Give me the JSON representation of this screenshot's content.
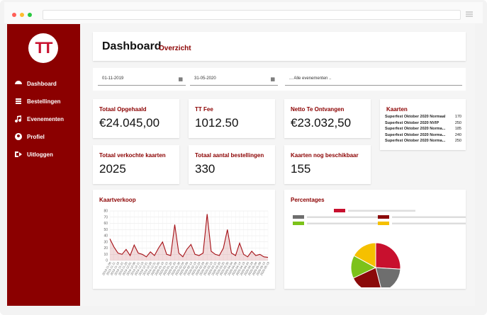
{
  "logo": "TT",
  "nav": [
    "Dashboard",
    "Bestellingen",
    "Evenementen",
    "Profiel",
    "Uitloggen"
  ],
  "header": {
    "title": "Dashboard",
    "subtitle": "Overzicht"
  },
  "filters": {
    "date_from": "01-11-2019",
    "date_to": "31-05-2020",
    "event": "... Alle evenementen .."
  },
  "cards": [
    {
      "label": "Totaal Opgehaald",
      "value": "€24.045,00"
    },
    {
      "label": "TT Fee",
      "value": "1012.50"
    },
    {
      "label": "Netto Te Ontvangen",
      "value": "€23.032,50"
    },
    {
      "label": "Totaal verkochte kaarten",
      "value": "2025"
    },
    {
      "label": "Totaal aantal bestellingen",
      "value": "330"
    },
    {
      "label": "Kaarten nog beschikbaar",
      "value": "155"
    }
  ],
  "tickets": {
    "title": "Kaarten",
    "rows": [
      [
        "Superfest Oktober 2020 Normaal",
        "170"
      ],
      [
        "Superfest Oktober 2020 NVIP",
        "250"
      ],
      [
        "Superfest Oktober 2020 Norma...",
        "185"
      ],
      [
        "Superfest Oktober 2020 Norma...",
        "240"
      ],
      [
        "Superfest Oktober 2020 Norma...",
        "250"
      ]
    ]
  },
  "charts": {
    "sales": {
      "type": "line",
      "title": "Kaartverkoop",
      "color": "#a50f15",
      "categories": [
        "2019-11-06",
        "2019-11-11",
        "2019-11-16",
        "2019-11-21",
        "2019-11-26",
        "2019-12-01",
        "2019-12-06",
        "2019-12-11",
        "2019-12-16",
        "2019-12-21",
        "2019-12-26",
        "2019-12-31",
        "2020-01-05",
        "2020-01-10",
        "2020-01-15",
        "2020-01-20",
        "2020-01-25",
        "2020-01-30",
        "2020-02-04",
        "2020-02-09",
        "2020-02-14",
        "2020-02-19",
        "2020-02-24",
        "2020-02-29",
        "2020-03-05",
        "2020-03-10",
        "2020-03-15",
        "2020-03-20",
        "2020-03-25",
        "2020-03-30",
        "2020-04-04",
        "2020-04-09",
        "2020-04-14",
        "2020-04-19",
        "2020-04-24",
        "2020-04-29",
        "2020-05-04",
        "2020-05-09",
        "2020-05-14",
        "2020-05-19"
      ],
      "values": [
        35,
        22,
        12,
        10,
        18,
        8,
        25,
        12,
        10,
        6,
        14,
        8,
        20,
        30,
        10,
        8,
        58,
        12,
        6,
        18,
        26,
        10,
        8,
        12,
        75,
        15,
        10,
        8,
        20,
        50,
        12,
        8,
        28,
        10,
        6,
        15,
        8,
        10,
        6,
        5
      ],
      "ylim": [
        0,
        80
      ],
      "yticks": [
        0,
        10,
        20,
        30,
        40,
        50,
        60,
        70,
        80
      ],
      "grid": true
    },
    "share": {
      "type": "pie",
      "title": "Percentages",
      "series": [
        {
          "color": "#c8102e",
          "values": [
            26
          ]
        },
        {
          "color": "#6e6e6e",
          "values": [
            20
          ]
        },
        {
          "color": "#8b0a0a",
          "values": [
            22
          ]
        },
        {
          "color": "#7cc21a",
          "values": [
            15
          ]
        },
        {
          "color": "#f5c000",
          "values": [
            17
          ]
        }
      ]
    }
  }
}
